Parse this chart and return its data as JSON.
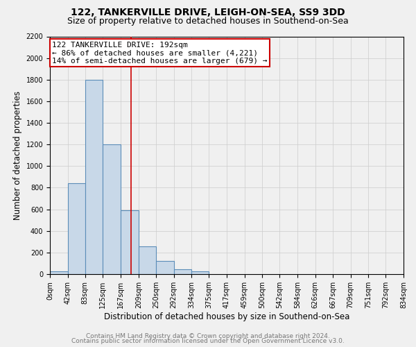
{
  "title": "122, TANKERVILLE DRIVE, LEIGH-ON-SEA, SS9 3DD",
  "subtitle": "Size of property relative to detached houses in Southend-on-Sea",
  "xlabel": "Distribution of detached houses by size in Southend-on-Sea",
  "ylabel": "Number of detached properties",
  "bin_edges": [
    0,
    42,
    83,
    125,
    167,
    209,
    250,
    292,
    334,
    375,
    417,
    459,
    500,
    542,
    584,
    626,
    667,
    709,
    751,
    792,
    834
  ],
  "bin_counts": [
    25,
    840,
    1800,
    1200,
    590,
    255,
    120,
    45,
    25,
    0,
    0,
    0,
    0,
    0,
    0,
    0,
    0,
    0,
    0,
    0
  ],
  "bar_color": "#c8d8e8",
  "bar_edge_color": "#5b8db8",
  "reference_line_x": 192,
  "reference_line_color": "#cc0000",
  "annotation_line1": "122 TANKERVILLE DRIVE: 192sqm",
  "annotation_line2": "← 86% of detached houses are smaller (4,221)",
  "annotation_line3": "14% of semi-detached houses are larger (679) →",
  "annotation_box_color": "#ffffff",
  "annotation_box_edge_color": "#cc0000",
  "ylim": [
    0,
    2200
  ],
  "yticks": [
    0,
    200,
    400,
    600,
    800,
    1000,
    1200,
    1400,
    1600,
    1800,
    2000,
    2200
  ],
  "xtick_labels": [
    "0sqm",
    "42sqm",
    "83sqm",
    "125sqm",
    "167sqm",
    "209sqm",
    "250sqm",
    "292sqm",
    "334sqm",
    "375sqm",
    "417sqm",
    "459sqm",
    "500sqm",
    "542sqm",
    "584sqm",
    "626sqm",
    "667sqm",
    "709sqm",
    "751sqm",
    "792sqm",
    "834sqm"
  ],
  "footer_line1": "Contains HM Land Registry data © Crown copyright and database right 2024.",
  "footer_line2": "Contains public sector information licensed under the Open Government Licence v3.0.",
  "background_color": "#f0f0f0",
  "plot_background_color": "#f0f0f0",
  "grid_color": "#cccccc",
  "title_fontsize": 10,
  "subtitle_fontsize": 9,
  "axis_label_fontsize": 8.5,
  "tick_fontsize": 7,
  "annotation_fontsize": 8,
  "footer_fontsize": 6.5
}
